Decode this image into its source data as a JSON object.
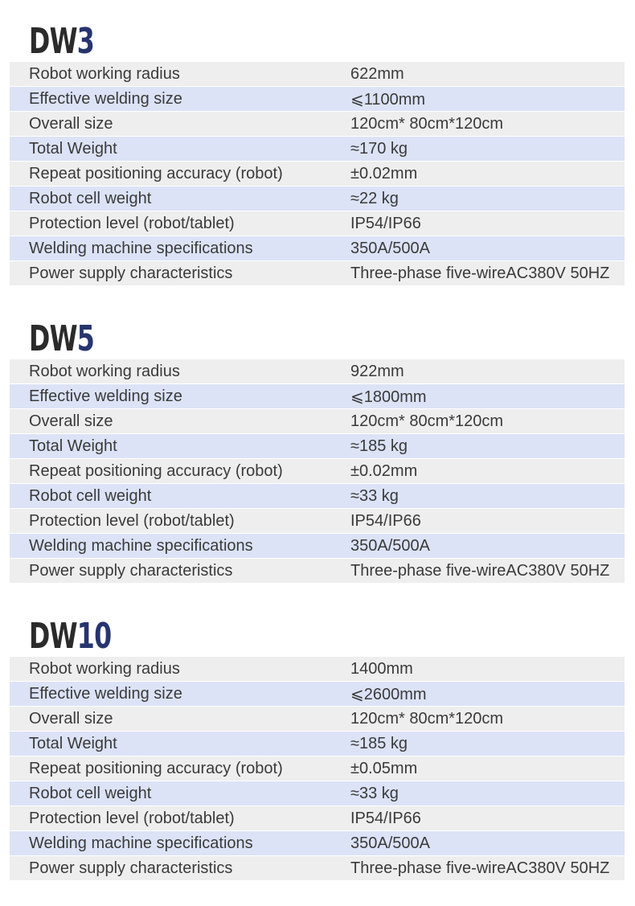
{
  "colors": {
    "row_gray": "#eeeeee",
    "row_blue": "#dce3f6",
    "title_dark": "#2b2b2b",
    "title_accent": "#27346e"
  },
  "labels": [
    "Robot working radius",
    "Effective welding size",
    "Overall size",
    "Total Weight",
    "Repeat positioning accuracy (robot)",
    "Robot cell weight",
    "Protection level (robot/tablet)",
    "Welding machine specifications",
    "Power supply characteristics"
  ],
  "sections": [
    {
      "title_prefix": "DW",
      "title_number": "3",
      "values": [
        "622mm",
        "⩽1100mm",
        "120cm* 80cm*120cm",
        "≈170 kg",
        "±0.02mm",
        "≈22 kg",
        "IP54/IP66",
        "350A/500A",
        "Three-phase five-wireAC380V 50HZ"
      ]
    },
    {
      "title_prefix": "DW",
      "title_number": "5",
      "values": [
        "922mm",
        "⩽1800mm",
        "120cm* 80cm*120cm",
        "≈185 kg",
        "±0.02mm",
        "≈33 kg",
        "IP54/IP66",
        "350A/500A",
        "Three-phase five-wireAC380V 50HZ"
      ]
    },
    {
      "title_prefix": "DW",
      "title_number": "10",
      "values": [
        "1400mm",
        "⩽2600mm",
        "120cm* 80cm*120cm",
        "≈185 kg",
        "±0.05mm",
        "≈33 kg",
        "IP54/IP66",
        "350A/500A",
        "Three-phase five-wireAC380V 50HZ"
      ]
    }
  ]
}
